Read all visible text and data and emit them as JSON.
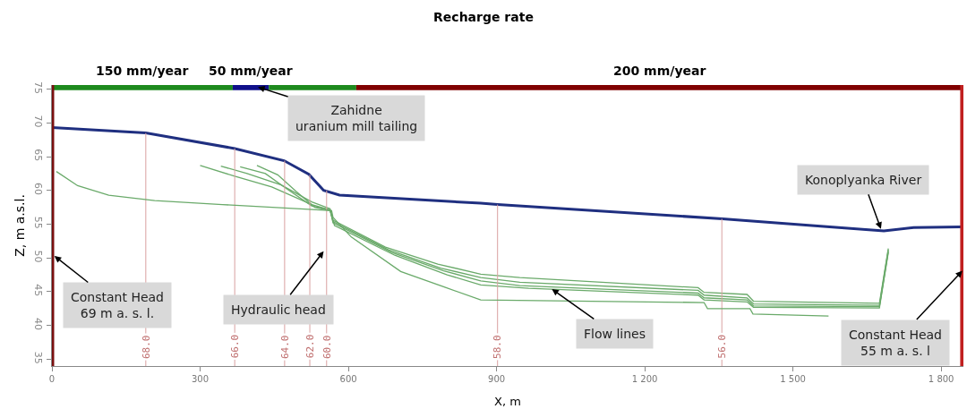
{
  "chart_data": {
    "type": "line",
    "title": "Recharge rate",
    "xlabel": "X, m",
    "ylabel": "Z, m a.s.l.",
    "xlim": [
      0,
      1845
    ],
    "xticks": [
      0,
      300,
      600,
      900,
      {
        "value": 1200,
        "label": "1 200"
      },
      {
        "value": 1500,
        "label": "1 500"
      },
      {
        "value": 1800,
        "label": "1 800"
      }
    ],
    "ylim": [
      34,
      75.6
    ],
    "yticks": [
      35,
      40,
      45,
      50,
      55,
      60,
      65,
      70,
      75
    ],
    "grid": false,
    "legend": false,
    "marker": "none",
    "line_style": "solid",
    "series": [
      {
        "color": "#1f2f80",
        "x": [
          0,
          190,
          370,
          470,
          520,
          550,
          582,
          868,
          902,
          1357,
          1556,
          1684,
          1744,
          1843
        ],
        "values": [
          69.3,
          68.5,
          66.2,
          64.4,
          62.4,
          60.0,
          59.3,
          58.1,
          57.9,
          55.8,
          54.7,
          54.0,
          54.5,
          54.6
        ]
      },
      {
        "color": "#6aaa6a",
        "x": [
          300,
          370,
          445,
          526,
          563,
          569,
          675,
          781,
          868,
          947,
          1308,
          1320,
          1407,
          1420,
          1675,
          1693
        ],
        "values": [
          63.7,
          62.1,
          60.5,
          57.9,
          57.1,
          55.6,
          51.6,
          49.1,
          47.6,
          47.1,
          45.6,
          44.9,
          44.6,
          43.6,
          43.3,
          51.4
        ]
      },
      {
        "color": "#6aaa6a",
        "x": [
          342,
          395,
          464,
          526,
          563,
          569,
          681,
          787,
          868,
          947,
          1308,
          1320,
          1407,
          1420,
          1675,
          1693
        ],
        "values": [
          63.6,
          62.5,
          60.8,
          58.3,
          57.3,
          55.4,
          51.2,
          48.5,
          47.1,
          46.4,
          45.2,
          44.5,
          44.1,
          43.2,
          43.0,
          51.2
        ]
      },
      {
        "color": "#6aaa6a",
        "x": [
          381,
          432,
          476,
          526,
          563,
          569,
          688,
          793,
          868,
          947,
          1308,
          1320,
          1407,
          1420,
          1675,
          1693
        ],
        "values": [
          63.5,
          62.5,
          60.2,
          57.7,
          57.1,
          55.2,
          50.8,
          48.1,
          46.6,
          45.9,
          44.8,
          44.1,
          43.8,
          42.9,
          42.8,
          51.0
        ]
      },
      {
        "color": "#6aaa6a",
        "x": [
          415,
          457,
          495,
          532,
          563,
          572,
          694,
          800,
          868,
          965,
          1308,
          1320,
          1407,
          1420,
          1675,
          1693
        ],
        "values": [
          63.7,
          62.3,
          59.8,
          57.5,
          57.0,
          54.8,
          50.4,
          47.5,
          46.0,
          45.5,
          44.5,
          43.8,
          43.5,
          42.7,
          42.6,
          50.8
        ]
      },
      {
        "name": "150 mm/year",
        "color": "#1e8a1e",
        "x": [
          0,
          366
        ],
        "values": [
          75.3,
          75.3
        ]
      },
      {
        "name": "50 mm/year",
        "color": "#10108a",
        "x": [
          366,
          439
        ],
        "values": [
          75.3,
          75.3
        ]
      },
      {
        "color": "#1e8a1e",
        "x": [
          439,
          616
        ],
        "values": [
          75.3,
          75.3
        ]
      },
      {
        "name": "200 mm/year",
        "color": "#800000",
        "x": [
          616,
          1845
        ],
        "values": [
          75.3,
          75.3
        ]
      },
      {
        "name": "68.0",
        "color": "#d9a0a0",
        "x": [
          190,
          190
        ],
        "values": [
          34,
          68.5
        ]
      },
      {
        "name": "66.0",
        "color": "#d9a0a0",
        "x": [
          370,
          370
        ],
        "values": [
          34,
          66.2
        ]
      },
      {
        "name": "64.0",
        "color": "#d9a0a0",
        "x": [
          471,
          471
        ],
        "values": [
          34,
          64.4
        ]
      },
      {
        "name": "62.0",
        "color": "#d9a0a0",
        "x": [
          522,
          522
        ],
        "values": [
          34,
          62.3
        ]
      },
      {
        "name": "60.0",
        "color": "#d9a0a0",
        "x": [
          556,
          556
        ],
        "values": [
          34,
          60.0
        ]
      },
      {
        "name": "58.0",
        "color": "#d9a0a0",
        "x": [
          902,
          902
        ],
        "values": [
          34,
          57.9
        ]
      },
      {
        "name": "56.0",
        "color": "#d9a0a0",
        "x": [
          1356,
          1356
        ],
        "values": [
          34,
          55.8
        ]
      },
      {
        "color": "#6aaa6a",
        "x": [
          9,
          52,
          115,
          208,
          345,
          520,
          566,
          569,
          606,
          706,
          794,
          868,
          1320,
          1327,
          1413,
          1419,
          1572
        ],
        "values": [
          62.8,
          60.7,
          59.3,
          58.5,
          57.9,
          57.2,
          57.0,
          56.0,
          53.1,
          48.0,
          45.7,
          43.8,
          43.4,
          42.5,
          42.5,
          41.7,
          41.4
        ]
      }
    ],
    "ref_lines": [
      {
        "axis": "x",
        "value": 0,
        "color": "#7b1010"
      },
      {
        "axis": "x",
        "value": 1843,
        "color": "#c02020"
      }
    ],
    "annotations": [
      {
        "text": "Zahidne\nuranium mill tailing",
        "x": 417,
        "y": 75.3
      },
      {
        "text": "Constant Head\n69 m a. s. l.",
        "x": 5,
        "y": 50.3
      },
      {
        "text": "Hydraulic head",
        "x": 550,
        "y": 51.0
      },
      {
        "text": "Flow lines",
        "x": 1012,
        "y": 45.4
      },
      {
        "text": "Konoplyanka River",
        "x": 1678,
        "y": 54.3
      },
      {
        "text": "Constant Head\n55 m a. s. l",
        "x": 1843,
        "y": 48.1
      }
    ]
  }
}
